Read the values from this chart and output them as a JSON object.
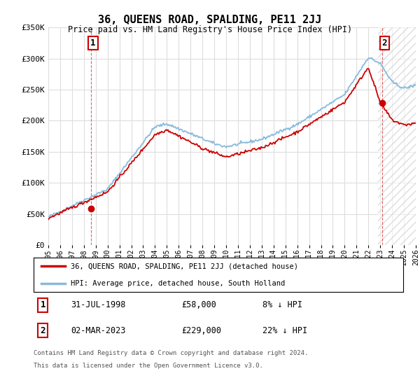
{
  "title": "36, QUEENS ROAD, SPALDING, PE11 2JJ",
  "subtitle": "Price paid vs. HM Land Registry's House Price Index (HPI)",
  "ylim": [
    0,
    350000
  ],
  "yticks": [
    0,
    50000,
    100000,
    150000,
    200000,
    250000,
    300000,
    350000
  ],
  "ytick_labels": [
    "£0",
    "£50K",
    "£100K",
    "£150K",
    "£200K",
    "£250K",
    "£300K",
    "£350K"
  ],
  "xstart": 1995,
  "xend": 2026,
  "transaction1": {
    "date_num": 1998.58,
    "price": 58000,
    "label": "1",
    "pct": "8% ↓ HPI",
    "date_str": "31-JUL-1998",
    "price_str": "£58,000"
  },
  "transaction2": {
    "date_num": 2023.17,
    "price": 229000,
    "label": "2",
    "pct": "22% ↓ HPI",
    "date_str": "02-MAR-2023",
    "price_str": "£229,000"
  },
  "line_color_property": "#cc0000",
  "line_color_hpi": "#88bbdd",
  "background_color": "#ffffff",
  "grid_color": "#dddddd",
  "legend_label_property": "36, QUEENS ROAD, SPALDING, PE11 2JJ (detached house)",
  "legend_label_hpi": "HPI: Average price, detached house, South Holland",
  "footer": "Contains HM Land Registry data © Crown copyright and database right 2024.\nThis data is licensed under the Open Government Licence v3.0.",
  "marker_box_color": "#cc0000",
  "hatch_color": "#cccccc"
}
